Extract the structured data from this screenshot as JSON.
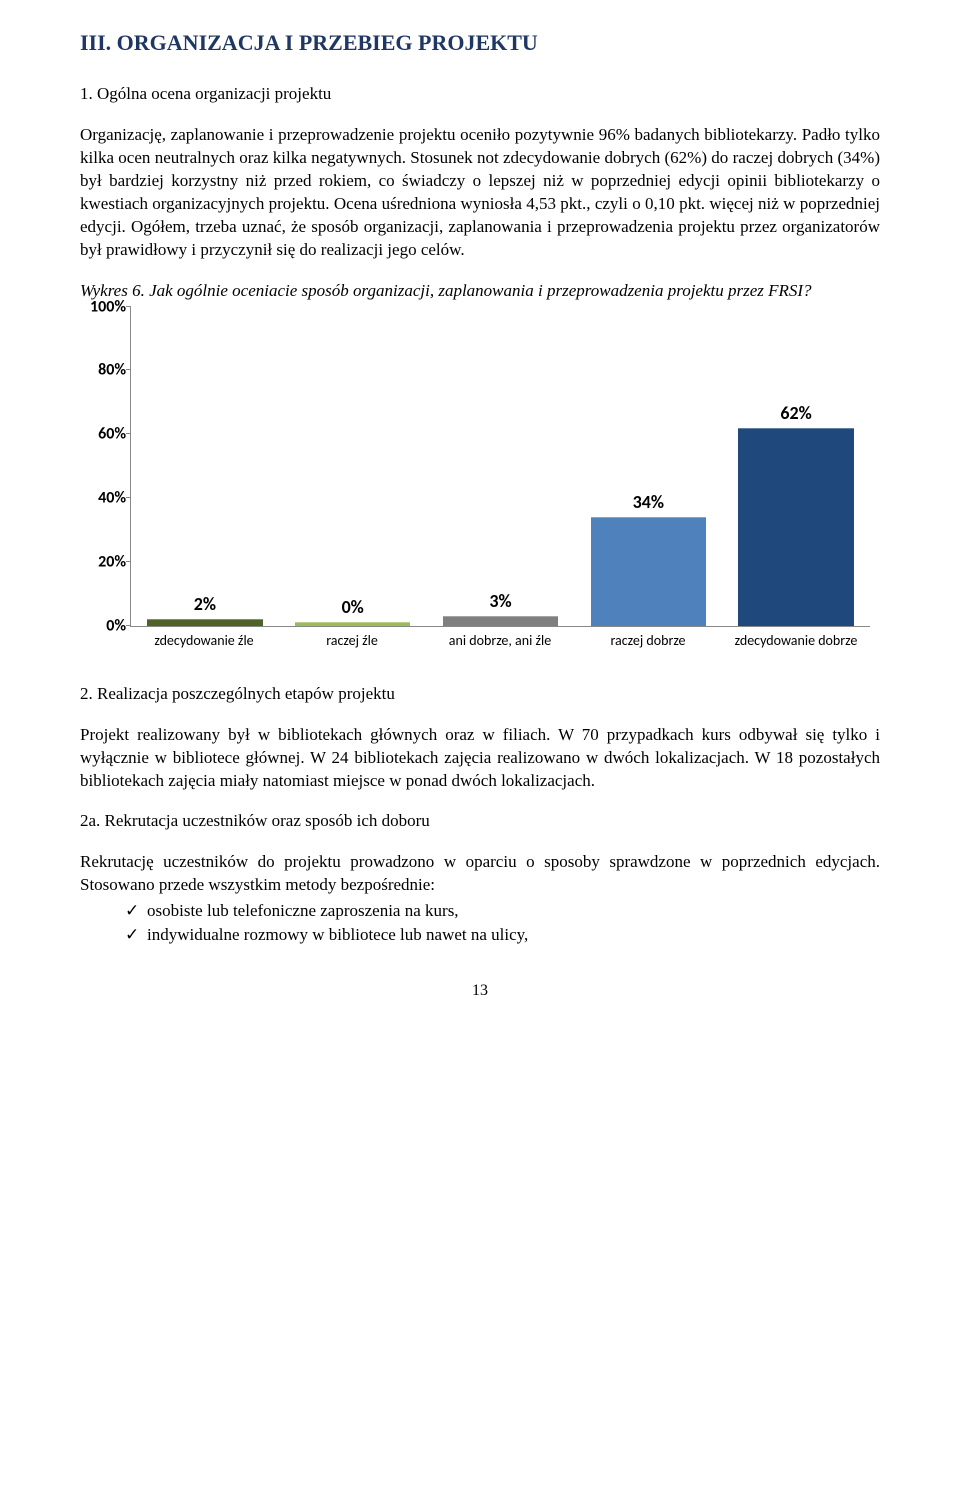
{
  "title": "III. ORGANIZACJA I PRZEBIEG PROJEKTU",
  "section1": {
    "heading": "1. Ogólna ocena organizacji projektu",
    "para1": "Organizację, zaplanowanie i przeprowadzenie projektu oceniło pozytywnie 96% badanych bibliotekarzy. Padło tylko kilka ocen neutralnych oraz kilka negatywnych. Stosunek not zdecydowanie dobrych (62%) do raczej dobrych (34%) był bardziej korzystny niż przed rokiem, co świadczy o lepszej niż w poprzedniej edycji opinii bibliotekarzy o kwestiach organizacyjnych projektu. Ocena uśredniona wyniosła 4,53 pkt., czyli o 0,10 pkt. więcej niż w poprzedniej edycji. Ogółem, trzeba uznać, że sposób organizacji, zaplanowania i przeprowadzenia projektu przez organizatorów był prawidłowy i przyczynił się do realizacji jego celów.",
    "caption": "Wykres 6. Jak ogólnie oceniacie sposób organizacji, zaplanowania i przeprowadzenia projektu przez FRSI?"
  },
  "chart": {
    "type": "bar",
    "ylim": [
      0,
      100
    ],
    "ytick_step": 20,
    "yticks": [
      "0%",
      "20%",
      "40%",
      "60%",
      "80%",
      "100%"
    ],
    "label_fontsize": 16,
    "value_fontsize": 18,
    "xlabel_fontsize": 14,
    "background": "#ffffff",
    "axis_color": "#888888",
    "bars": [
      {
        "label": "zdecydowanie źle",
        "value": 2,
        "value_label": "2%",
        "color": "#4f6228"
      },
      {
        "label": "raczej źle",
        "value": 0,
        "value_label": "0%",
        "color": "#9bbb59"
      },
      {
        "label": "ani dobrze, ani źle",
        "value": 3,
        "value_label": "3%",
        "color": "#7f7f7f"
      },
      {
        "label": "raczej dobrze",
        "value": 34,
        "value_label": "34%",
        "color": "#4f81bd"
      },
      {
        "label": "zdecydowanie dobrze",
        "value": 62,
        "value_label": "62%",
        "color": "#1f497d"
      }
    ]
  },
  "section2": {
    "heading": "2. Realizacja poszczególnych etapów projektu",
    "para": "Projekt realizowany był w bibliotekach głównych oraz w filiach. W 70 przypadkach kurs odbywał się tylko i wyłącznie w bibliotece głównej. W 24 bibliotekach zajęcia realizowano w dwóch lokalizacjach. W 18 pozostałych bibliotekach zajęcia miały natomiast miejsce w ponad dwóch lokalizacjach."
  },
  "section2a": {
    "heading": "2a. Rekrutacja uczestników oraz sposób ich doboru",
    "para": "Rekrutację uczestników do projektu prowadzono w oparciu o sposoby sprawdzone w poprzednich edycjach. Stosowano przede wszystkim metody bezpośrednie:",
    "bullets": [
      "osobiste lub telefoniczne zaproszenia na kurs,",
      "indywidualne rozmowy w bibliotece lub nawet na ulicy,"
    ]
  },
  "page_number": "13"
}
